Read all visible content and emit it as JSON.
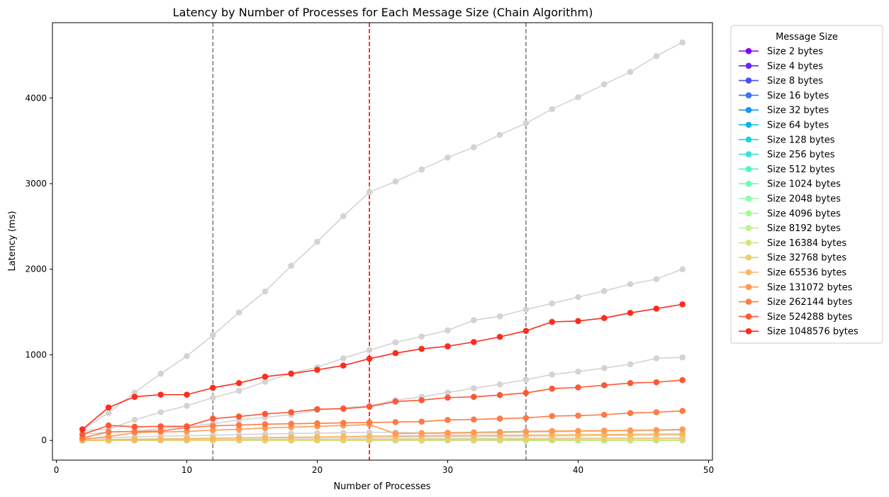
{
  "chart_data": {
    "type": "line",
    "title": "Latency by Number of Processes for Each Message Size (Chain Algorithm)",
    "xlabel": "Number of Processes",
    "ylabel": "Latency (ms)",
    "xlim": [
      -0.3,
      50.3
    ],
    "ylim": [
      -230,
      4880
    ],
    "xticks": [
      0,
      10,
      20,
      30,
      40,
      50
    ],
    "yticks": [
      0,
      1000,
      2000,
      3000,
      4000
    ],
    "grid": false,
    "legend": {
      "title": "Message Size",
      "placement": "outside-right"
    },
    "vlines": [
      {
        "x": 12,
        "color": "#808080",
        "style": "dashed"
      },
      {
        "x": 24,
        "color": "#ff0000",
        "style": "dashed"
      },
      {
        "x": 36,
        "color": "#808080",
        "style": "dashed"
      }
    ],
    "x": [
      2,
      4,
      6,
      8,
      10,
      12,
      14,
      16,
      18,
      20,
      22,
      24,
      26,
      28,
      30,
      32,
      34,
      36,
      38,
      40,
      42,
      44,
      46,
      48
    ],
    "background_series": [
      {
        "color": "#d3d3d3",
        "values": [
          130,
          320,
          560,
          780,
          985,
          1230,
          1495,
          1740,
          2040,
          2320,
          2620,
          2900,
          3025,
          3165,
          3305,
          3425,
          3570,
          3705,
          3870,
          4010,
          4160,
          4305,
          4490,
          4650
        ]
      },
      {
        "color": "#d3d3d3",
        "values": [
          120,
          130,
          240,
          330,
          405,
          500,
          580,
          685,
          785,
          855,
          960,
          1055,
          1145,
          1215,
          1285,
          1405,
          1450,
          1530,
          1600,
          1675,
          1745,
          1825,
          1885,
          2000
        ]
      },
      {
        "color": "#d3d3d3",
        "values": [
          70,
          100,
          105,
          140,
          165,
          195,
          240,
          270,
          300,
          355,
          380,
          405,
          470,
          510,
          560,
          610,
          655,
          710,
          770,
          805,
          845,
          890,
          960,
          970
        ]
      },
      {
        "color": "#d3d3d3",
        "values": [
          20,
          30,
          40,
          50,
          55,
          60,
          70,
          75,
          80,
          85,
          90,
          95,
          95,
          85,
          80,
          85,
          90,
          95,
          100,
          105,
          110,
          112,
          115,
          120
        ]
      },
      {
        "color": "#d3d3d3",
        "values": [
          5,
          10,
          15,
          20,
          22,
          25,
          28,
          30,
          32,
          34,
          36,
          38,
          40,
          42,
          44,
          46,
          48,
          50,
          52,
          54,
          56,
          58,
          60,
          62
        ]
      },
      {
        "color": "#d3d3d3",
        "values": [
          0,
          2,
          4,
          6,
          8,
          10,
          12,
          14,
          15,
          16,
          17,
          18,
          19,
          20,
          21,
          22,
          23,
          24,
          25,
          26,
          27,
          28,
          29,
          30
        ]
      },
      {
        "color": "#d3d3d3",
        "values": [
          0,
          0,
          0,
          0,
          0,
          0,
          0,
          0,
          0,
          0,
          0,
          0,
          0,
          0,
          0,
          0,
          0,
          0,
          0,
          0,
          0,
          0,
          0,
          0
        ]
      }
    ],
    "series": [
      {
        "name": "Size 2 bytes",
        "color": "#8000ff",
        "values": [
          0,
          0,
          0,
          0,
          0,
          0,
          0,
          0,
          0,
          0,
          0,
          0,
          0,
          0,
          0,
          0,
          0,
          0,
          0,
          0,
          0,
          0,
          0,
          0
        ]
      },
      {
        "name": "Size 4 bytes",
        "color": "#6a23fe",
        "values": [
          0,
          0,
          0,
          0,
          0,
          0,
          0,
          0,
          0,
          0,
          0,
          0,
          0,
          0,
          0,
          0,
          0,
          0,
          0,
          0,
          0,
          0,
          0,
          0
        ]
      },
      {
        "name": "Size 8 bytes",
        "color": "#4e4dfc",
        "values": [
          0,
          0,
          0,
          0,
          0,
          0,
          0,
          0,
          0,
          0,
          0,
          0,
          0,
          0,
          0,
          0,
          0,
          0,
          0,
          0,
          0,
          0,
          0,
          0
        ]
      },
      {
        "name": "Size 16 bytes",
        "color": "#3474f6",
        "values": [
          0,
          0,
          0,
          0,
          0,
          0,
          0,
          0,
          0,
          0,
          0,
          0,
          0,
          0,
          0,
          0,
          0,
          0,
          0,
          0,
          0,
          0,
          0,
          0
        ]
      },
      {
        "name": "Size 32 bytes",
        "color": "#1996f3",
        "values": [
          0,
          0,
          0,
          0,
          0,
          0,
          0,
          0,
          0,
          0,
          0,
          0,
          0,
          0,
          0,
          0,
          0,
          0,
          0,
          0,
          0,
          0,
          0,
          0
        ]
      },
      {
        "name": "Size 64 bytes",
        "color": "#02b7eb",
        "values": [
          0,
          0,
          0,
          0,
          0,
          0,
          0,
          0,
          0,
          0,
          0,
          0,
          0,
          0,
          0,
          0,
          0,
          0,
          0,
          0,
          0,
          0,
          0,
          0
        ]
      },
      {
        "name": "Size 128 bytes",
        "color": "#1dd2de",
        "values": [
          0,
          0,
          0,
          0,
          0,
          0,
          0,
          0,
          0,
          0,
          0,
          0,
          0,
          0,
          0,
          0,
          0,
          0,
          0,
          0,
          0,
          0,
          0,
          0
        ]
      },
      {
        "name": "Size 256 bytes",
        "color": "#36e6d6",
        "values": [
          0,
          0,
          0,
          0,
          0,
          0,
          0,
          0,
          0,
          0,
          0,
          0,
          0,
          0,
          0,
          0,
          0,
          0,
          0,
          0,
          0,
          0,
          0,
          0
        ]
      },
      {
        "name": "Size 512 bytes",
        "color": "#50f4c8",
        "values": [
          0,
          0,
          0,
          0,
          0,
          0,
          0,
          0,
          0,
          0,
          0,
          0,
          0,
          0,
          0,
          0,
          0,
          0,
          0,
          0,
          0,
          0,
          0,
          0
        ]
      },
      {
        "name": "Size 1024 bytes",
        "color": "#6cfbb8",
        "values": [
          0,
          0,
          0,
          0,
          0,
          0,
          0,
          0,
          0,
          0,
          0,
          0,
          0,
          0,
          0,
          0,
          0,
          0,
          0,
          0,
          0,
          0,
          0,
          0
        ]
      },
      {
        "name": "Size 2048 bytes",
        "color": "#88ffa8",
        "values": [
          0,
          0,
          0,
          0,
          0,
          0,
          0,
          0,
          0,
          0,
          0,
          0,
          0,
          0,
          0,
          0,
          0,
          0,
          0,
          0,
          0,
          0,
          0,
          0
        ]
      },
      {
        "name": "Size 4096 bytes",
        "color": "#a2fb9b",
        "values": [
          0,
          0,
          0,
          0,
          0,
          0,
          0,
          0,
          0,
          0,
          0,
          0,
          0,
          0,
          0,
          0,
          0,
          0,
          0,
          0,
          0,
          0,
          0,
          0
        ]
      },
      {
        "name": "Size 8192 bytes",
        "color": "#bdf28c",
        "values": [
          0,
          0,
          0,
          0,
          0,
          0,
          0,
          0,
          0,
          0,
          0,
          0,
          0,
          0,
          0,
          0,
          0,
          0,
          0,
          0,
          0,
          0,
          0,
          0
        ]
      },
      {
        "name": "Size 16384 bytes",
        "color": "#d2e47f",
        "values": [
          0,
          0,
          0,
          0,
          0,
          0,
          0,
          0,
          0,
          0,
          0,
          0,
          0,
          0,
          0,
          0,
          0,
          0,
          0,
          0,
          0,
          0,
          0,
          0
        ]
      },
      {
        "name": "Size 32768 bytes",
        "color": "#e8cf71",
        "values": [
          0,
          1,
          2,
          3,
          4,
          5,
          6,
          7,
          8,
          9,
          10,
          11,
          12,
          13,
          14,
          15,
          16,
          17,
          18,
          19,
          20,
          21,
          22,
          23
        ]
      },
      {
        "name": "Size 65536 bytes",
        "color": "#fcb65f",
        "values": [
          2,
          8,
          12,
          16,
          20,
          25,
          30,
          35,
          38,
          40,
          45,
          50,
          52,
          54,
          56,
          58,
          60,
          62,
          65,
          68,
          70,
          72,
          74,
          76
        ]
      },
      {
        "name": "Size 131072 bytes",
        "color": "#ff9a52",
        "values": [
          15,
          45,
          90,
          100,
          105,
          120,
          130,
          145,
          155,
          165,
          175,
          185,
          80,
          85,
          90,
          95,
          100,
          105,
          110,
          112,
          115,
          118,
          122,
          130
        ]
      },
      {
        "name": "Size 262144 bytes",
        "color": "#ff7a44",
        "values": [
          30,
          100,
          105,
          110,
          150,
          170,
          180,
          190,
          195,
          200,
          205,
          210,
          215,
          220,
          240,
          245,
          255,
          262,
          285,
          290,
          300,
          320,
          330,
          345
        ]
      },
      {
        "name": "Size 524288 bytes",
        "color": "#ff5734",
        "values": [
          70,
          175,
          160,
          165,
          165,
          255,
          280,
          310,
          330,
          365,
          370,
          395,
          455,
          470,
          500,
          510,
          530,
          555,
          605,
          620,
          645,
          670,
          680,
          705
        ]
      },
      {
        "name": "Size 1048576 bytes",
        "color": "#ff2b1c",
        "values": [
          130,
          385,
          510,
          535,
          535,
          615,
          670,
          745,
          780,
          825,
          875,
          955,
          1020,
          1070,
          1100,
          1150,
          1210,
          1280,
          1385,
          1395,
          1430,
          1490,
          1540,
          1590
        ]
      }
    ]
  }
}
